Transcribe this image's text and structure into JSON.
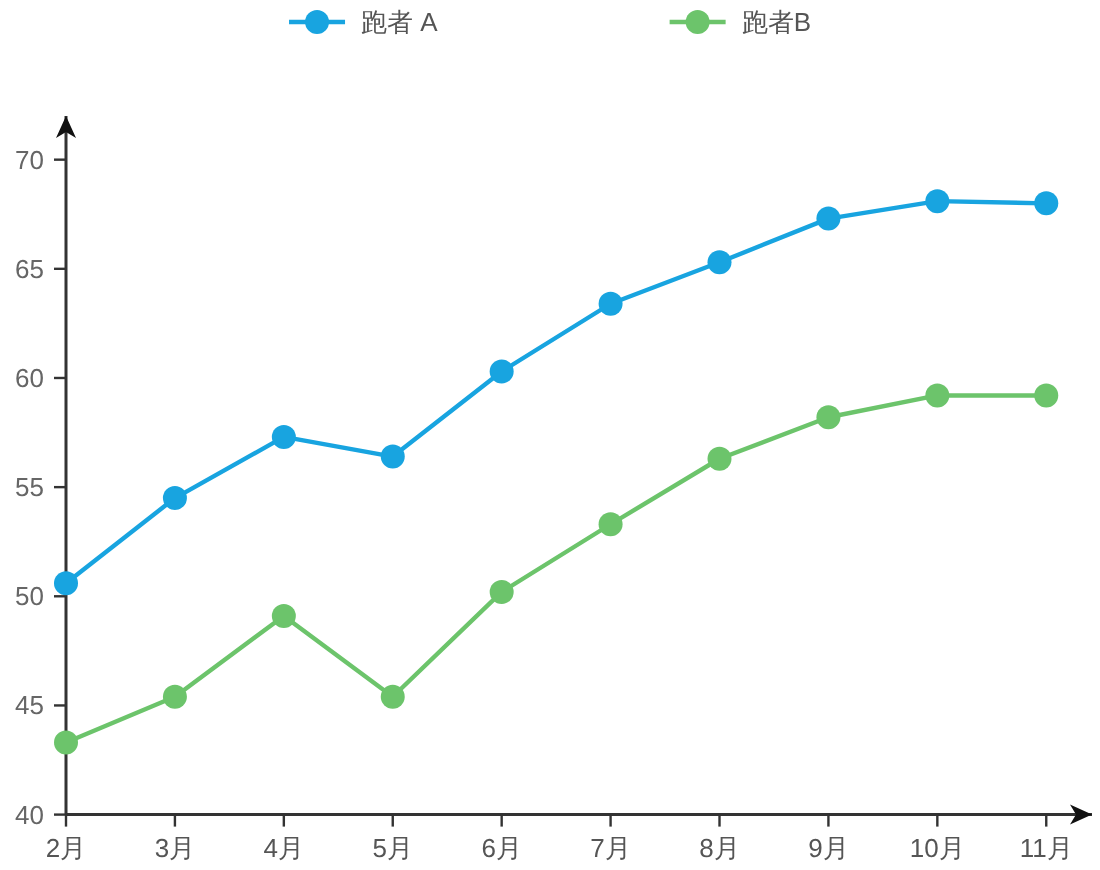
{
  "chart_data": {
    "type": "line",
    "categories": [
      "2月",
      "3月",
      "4月",
      "5月",
      "6月",
      "7月",
      "8月",
      "9月",
      "10月",
      "11月"
    ],
    "series": [
      {
        "name": "跑者 A",
        "color": "#18a4e0",
        "values": [
          50.6,
          54.5,
          57.3,
          56.4,
          60.3,
          63.4,
          65.3,
          67.3,
          68.1,
          68.0
        ]
      },
      {
        "name": "跑者B",
        "color": "#6cc46b",
        "values": [
          43.3,
          45.4,
          49.1,
          45.4,
          50.2,
          53.3,
          56.3,
          58.2,
          59.2,
          59.2
        ]
      }
    ],
    "ylim": [
      40,
      72
    ],
    "yticks": [
      40,
      45,
      50,
      55,
      60,
      65,
      70
    ],
    "legend": "top",
    "marker": "circle",
    "line_style": "solid"
  }
}
